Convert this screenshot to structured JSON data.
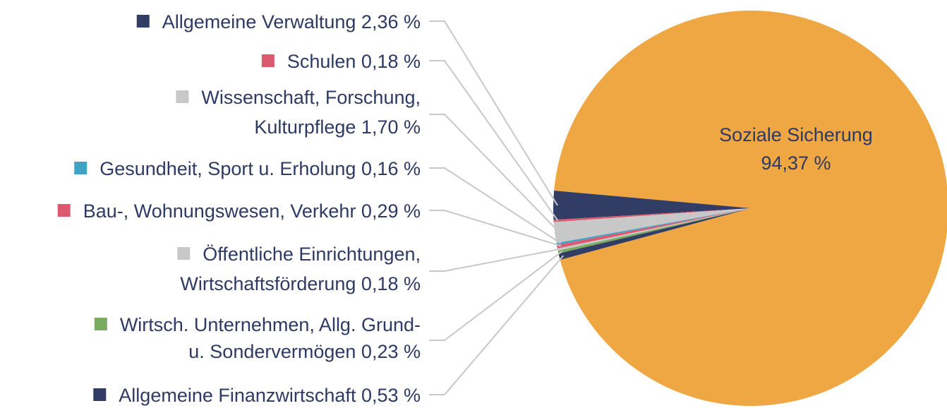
{
  "chart_data": {
    "type": "pie",
    "series": [
      {
        "name": "",
        "slices": [
          {
            "label_lines": [
              "Allgemeine Verwaltung 2,36 %"
            ],
            "value": 2.36,
            "color": "#323d66"
          },
          {
            "label_lines": [
              "Schulen 0,18 %"
            ],
            "value": 0.18,
            "color": "#db5a6f"
          },
          {
            "label_lines": [
              "Wissenschaft, Forschung,",
              "Kulturpflege 1,70 %"
            ],
            "value": 1.7,
            "color": "#c8c8c8"
          },
          {
            "label_lines": [
              "Gesundheit, Sport u. Erholung 0,16 %"
            ],
            "value": 0.16,
            "color": "#3ea3c4"
          },
          {
            "label_lines": [
              "Bau-, Wohnungswesen, Verkehr 0,29 %"
            ],
            "value": 0.29,
            "color": "#db5a6f"
          },
          {
            "label_lines": [
              "Öffentliche Einrichtungen,",
              "Wirtschaftsförderung 0,18 %"
            ],
            "value": 0.18,
            "color": "#c8c8c8"
          },
          {
            "label_lines": [
              "Wirtsch. Unternehmen, Allg. Grund-",
              "u. Sondervermögen 0,23 %"
            ],
            "value": 0.23,
            "color": "#79ab5e"
          },
          {
            "label_lines": [
              "Allgemeine Finanzwirtschaft 0,53 %"
            ],
            "value": 0.53,
            "color": "#323d66"
          }
        ]
      }
    ],
    "main_slice": {
      "label_lines": [
        "Soziale Sicherung",
        "94,37 %"
      ],
      "value": 94.37,
      "color": "#eea742"
    },
    "legend": "left"
  }
}
